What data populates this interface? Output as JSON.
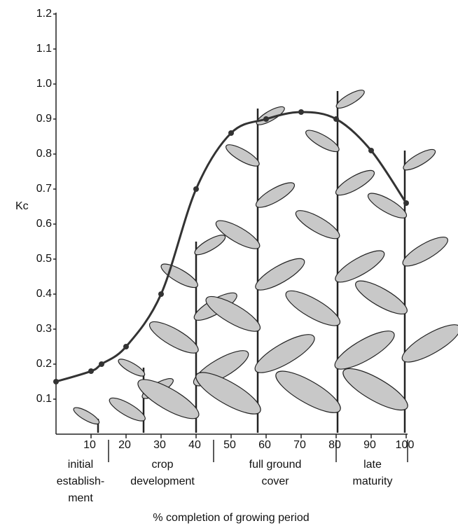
{
  "chart_data": {
    "type": "line",
    "y_label": "Kc",
    "x_label": "% completion of growing period",
    "x": [
      0,
      10,
      13,
      20,
      30,
      40,
      50,
      60,
      70,
      80,
      90,
      100
    ],
    "series": [
      {
        "color": "#333333",
        "values": [
          0.15,
          0.18,
          0.2,
          0.25,
          0.4,
          0.7,
          0.86,
          0.9,
          0.92,
          0.9,
          0.81,
          0.66
        ]
      }
    ],
    "xlim": [
      0,
      100
    ],
    "xticks": [
      10,
      20,
      30,
      40,
      50,
      60,
      70,
      80,
      90,
      100
    ],
    "ylim": [
      0,
      1.2
    ],
    "yticks": [
      0.1,
      0.2,
      0.3,
      0.4,
      0.5,
      0.6,
      0.7,
      0.8,
      0.9,
      {
        "value": 1,
        "label": "1.0"
      },
      1.1,
      1.2
    ],
    "annotations": [
      [
        "initial",
        "establish-",
        "ment"
      ],
      [
        "crop",
        "development"
      ],
      [
        "full ground",
        "cover"
      ],
      [
        "late",
        "maturity"
      ]
    ]
  }
}
